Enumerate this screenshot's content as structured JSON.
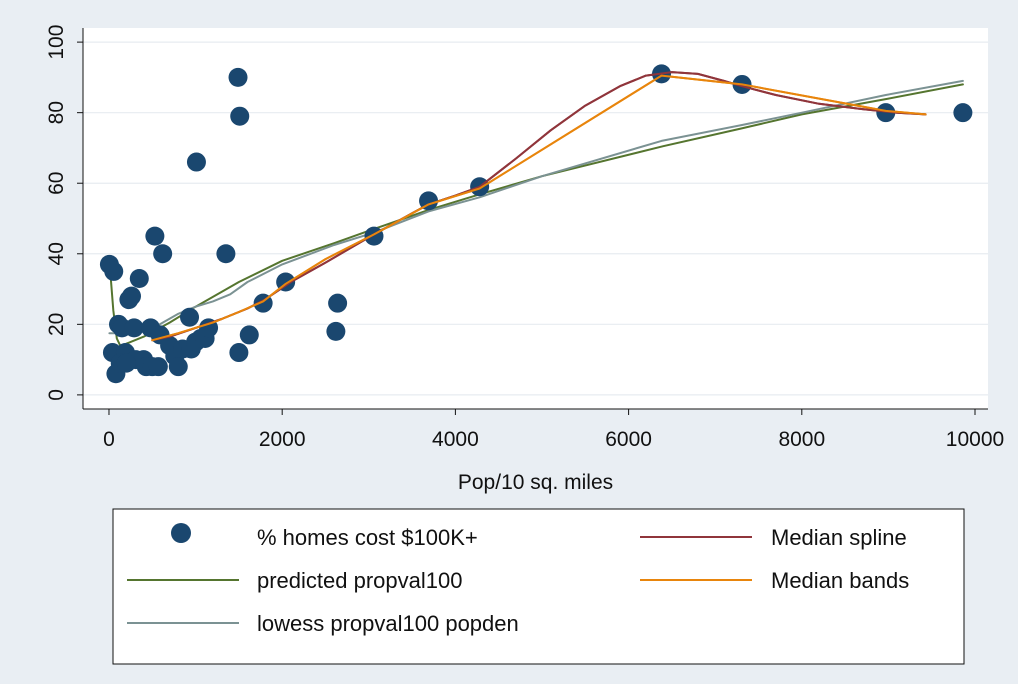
{
  "chart_data": {
    "type": "scatter",
    "xlabel": "Pop/10 sq. miles",
    "ylabel": "",
    "xlim": [
      -300,
      10150
    ],
    "ylim": [
      -4,
      104
    ],
    "x_ticks": [
      0,
      2000,
      4000,
      6000,
      8000,
      10000
    ],
    "y_ticks": [
      0,
      20,
      40,
      60,
      80,
      100
    ],
    "grid": "horizontal",
    "legend_position": "bottom",
    "background_color": "#e9eef3",
    "plot_background_color": "#ffffff",
    "series": [
      {
        "name": "% homes cost $100K+",
        "type": "scatter",
        "color": "#1a476f",
        "points": [
          [
            5,
            37
          ],
          [
            55,
            35
          ],
          [
            40,
            12
          ],
          [
            110,
            20
          ],
          [
            150,
            19
          ],
          [
            190,
            12
          ],
          [
            230,
            27
          ],
          [
            260,
            28
          ],
          [
            290,
            19
          ],
          [
            310,
            10
          ],
          [
            350,
            33
          ],
          [
            400,
            10
          ],
          [
            430,
            8
          ],
          [
            480,
            19
          ],
          [
            500,
            8
          ],
          [
            530,
            45
          ],
          [
            570,
            8
          ],
          [
            590,
            17
          ],
          [
            620,
            40
          ],
          [
            700,
            14
          ],
          [
            760,
            11
          ],
          [
            800,
            8
          ],
          [
            850,
            13
          ],
          [
            930,
            22
          ],
          [
            950,
            13
          ],
          [
            1000,
            15
          ],
          [
            1010,
            66
          ],
          [
            1060,
            16
          ],
          [
            1110,
            16
          ],
          [
            1150,
            19
          ],
          [
            1350,
            40
          ],
          [
            1490,
            90
          ],
          [
            1500,
            12
          ],
          [
            1510,
            79
          ],
          [
            1620,
            17
          ],
          [
            1780,
            26
          ],
          [
            2040,
            32
          ],
          [
            2620,
            18
          ],
          [
            2640,
            26
          ],
          [
            3060,
            45
          ],
          [
            3690,
            55
          ],
          [
            4280,
            59
          ],
          [
            6380,
            91
          ],
          [
            7310,
            88
          ],
          [
            8970,
            80
          ],
          [
            9860,
            80
          ],
          [
            80,
            6
          ],
          [
            130,
            9
          ],
          [
            200,
            9
          ]
        ]
      },
      {
        "name": "predicted propval100",
        "type": "line",
        "color": "#55752f",
        "points": [
          [
            5,
            38
          ],
          [
            50,
            24
          ],
          [
            90,
            16
          ],
          [
            130,
            14
          ],
          [
            200,
            14.5
          ],
          [
            400,
            16.5
          ],
          [
            700,
            20.5
          ],
          [
            1000,
            25
          ],
          [
            1500,
            32
          ],
          [
            2000,
            38
          ],
          [
            2600,
            43
          ],
          [
            3000,
            46.5
          ],
          [
            3700,
            52.5
          ],
          [
            4300,
            57
          ],
          [
            5000,
            62
          ],
          [
            6400,
            70.5
          ],
          [
            7300,
            75.5
          ],
          [
            8000,
            79.5
          ],
          [
            9000,
            84
          ],
          [
            9860,
            88
          ]
        ]
      },
      {
        "name": "lowess propval100 popden",
        "type": "line",
        "color": "#7b9293",
        "points": [
          [
            5,
            17.5
          ],
          [
            150,
            17.5
          ],
          [
            300,
            18
          ],
          [
            450,
            18.5
          ],
          [
            550,
            19.5
          ],
          [
            800,
            23
          ],
          [
            1000,
            25
          ],
          [
            1200,
            26.5
          ],
          [
            1400,
            28.5
          ],
          [
            1600,
            32
          ],
          [
            2000,
            37
          ],
          [
            2600,
            42.5
          ],
          [
            3060,
            46
          ],
          [
            3690,
            52
          ],
          [
            4280,
            56
          ],
          [
            5000,
            62
          ],
          [
            6380,
            72
          ],
          [
            7310,
            76.5
          ],
          [
            8000,
            80
          ],
          [
            8970,
            85
          ],
          [
            9860,
            89
          ]
        ]
      },
      {
        "name": "Median spline",
        "type": "line",
        "color": "#90353b",
        "points": [
          [
            500,
            15.5
          ],
          [
            700,
            16.5
          ],
          [
            1000,
            19
          ],
          [
            1300,
            21.5
          ],
          [
            1600,
            24.5
          ],
          [
            1800,
            27
          ],
          [
            2100,
            32
          ],
          [
            2500,
            37.5
          ],
          [
            3060,
            45.5
          ],
          [
            3500,
            51.5
          ],
          [
            3690,
            54
          ],
          [
            4000,
            56.5
          ],
          [
            4280,
            59
          ],
          [
            4700,
            67
          ],
          [
            5100,
            75
          ],
          [
            5500,
            82
          ],
          [
            5900,
            87.5
          ],
          [
            6200,
            90.5
          ],
          [
            6500,
            91.5
          ],
          [
            6800,
            91
          ],
          [
            7100,
            89
          ],
          [
            7310,
            87.5
          ],
          [
            7700,
            85
          ],
          [
            8200,
            82.5
          ],
          [
            8700,
            81
          ],
          [
            9100,
            80
          ],
          [
            9430,
            79.5
          ]
        ]
      },
      {
        "name": "Median bands",
        "type": "line",
        "color": "#e8850c",
        "points": [
          [
            500,
            15.5
          ],
          [
            800,
            17.5
          ],
          [
            1200,
            20.5
          ],
          [
            1500,
            23.5
          ],
          [
            1780,
            26.5
          ],
          [
            2040,
            31.5
          ],
          [
            2500,
            38.5
          ],
          [
            3060,
            45.5
          ],
          [
            3690,
            54
          ],
          [
            4280,
            58.5
          ],
          [
            6380,
            90.5
          ],
          [
            7310,
            88
          ],
          [
            8970,
            80.5
          ],
          [
            9430,
            79.5
          ]
        ]
      }
    ]
  }
}
